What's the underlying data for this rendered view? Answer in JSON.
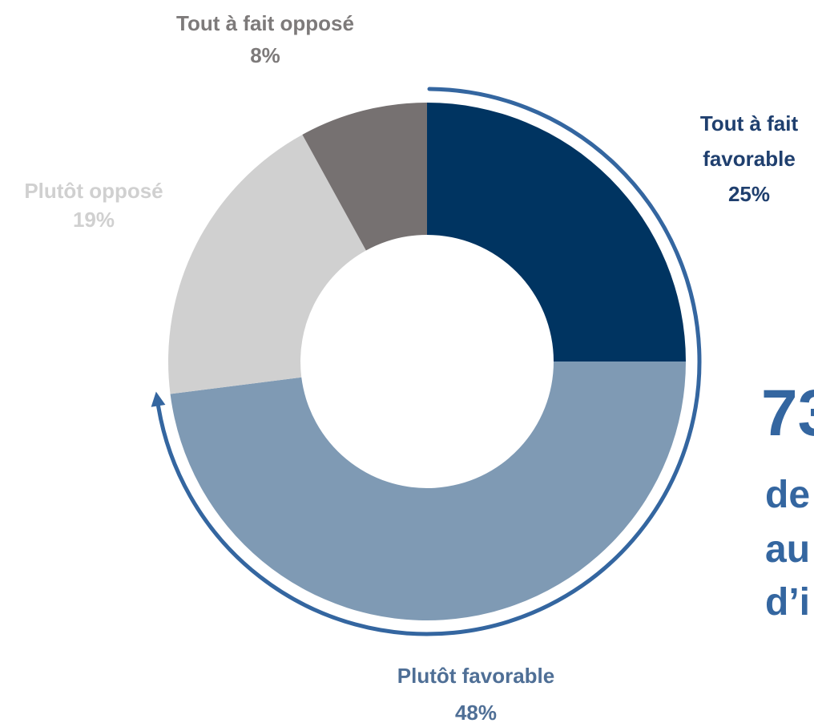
{
  "chart_data": {
    "type": "pie",
    "variant": "donut",
    "title": "",
    "slices": [
      {
        "name": "Tout à fait favorable",
        "label_lines": [
          "Tout à fait",
          "favorable"
        ],
        "value": 25,
        "value_text": "25%",
        "color": "#003461",
        "label_color": "#1f3f6e"
      },
      {
        "name": "Plutôt favorable",
        "label_lines": [
          "Plutôt favorable"
        ],
        "value": 48,
        "value_text": "48%",
        "color": "#7f9ab4",
        "label_color": "#4f6f96"
      },
      {
        "name": "Plutôt opposé",
        "label_lines": [
          "Plutôt opposé"
        ],
        "value": 19,
        "value_text": "19%",
        "color": "#d0d0d0",
        "label_color": "#d0d0d0"
      },
      {
        "name": "Tout à fait opposé",
        "label_lines": [
          "Tout à fait opposé"
        ],
        "value": 8,
        "value_text": "8%",
        "color": "#767171",
        "label_color": "#7d7a7a"
      }
    ],
    "highlight": {
      "value_text": "73",
      "lines": [
        "de",
        "au",
        "d’i"
      ],
      "color": "#3466a0",
      "arrow_color": "#3466a0"
    }
  }
}
